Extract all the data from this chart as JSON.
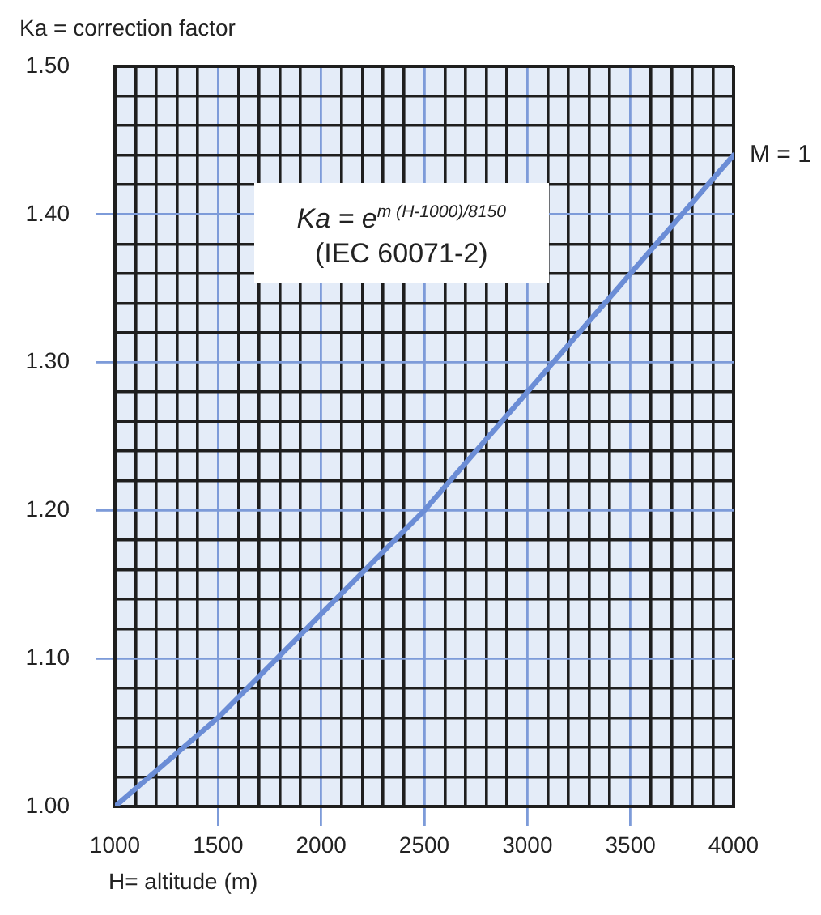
{
  "chart_data": {
    "type": "line",
    "xlabel": "H= altitude (m)",
    "ylabel": "Ka = correction factor",
    "annotations": [
      "Ka = e$^{m (H-1000)/8150}$",
      "(IEC 60071-2)"
    ],
    "x": [
      1000,
      1500,
      2000,
      2500,
      3000,
      3500,
      4000
    ],
    "series": [
      {
        "name": "M = 1",
        "color": "#6b8dd6",
        "values": [
          1.0,
          1.06,
          1.13,
          1.2,
          1.28,
          1.36,
          1.44
        ]
      }
    ],
    "xlim": [
      1000,
      4000
    ],
    "ylim": [
      1.0,
      1.5
    ],
    "xticks": [
      1000,
      {
        "value": 1100,
        "label": null
      },
      {
        "value": 1200,
        "label": null
      },
      {
        "value": 1300,
        "label": null
      },
      {
        "value": 1400,
        "label": null
      },
      1500,
      {
        "value": 1600,
        "label": null
      },
      {
        "value": 1700,
        "label": null
      },
      {
        "value": 1800,
        "label": null
      },
      {
        "value": 1900,
        "label": null
      },
      2000,
      {
        "value": 2100,
        "label": null
      },
      {
        "value": 2200,
        "label": null
      },
      {
        "value": 2300,
        "label": null
      },
      {
        "value": 2400,
        "label": null
      },
      2500,
      {
        "value": 2600,
        "label": null
      },
      {
        "value": 2700,
        "label": null
      },
      {
        "value": 2800,
        "label": null
      },
      {
        "value": 2900,
        "label": null
      },
      3000,
      {
        "value": 3100,
        "label": null
      },
      {
        "value": 3200,
        "label": null
      },
      {
        "value": 3300,
        "label": null
      },
      {
        "value": 3400,
        "label": null
      },
      3500,
      {
        "value": 3600,
        "label": null
      },
      {
        "value": 3700,
        "label": null
      },
      {
        "value": 3800,
        "label": null
      },
      {
        "value": 3900,
        "label": null
      },
      4000
    ],
    "yticks": [
      {
        "value": 1.0,
        "label": "1.00"
      },
      {
        "value": 1.02,
        "label": null
      },
      {
        "value": 1.04,
        "label": null
      },
      {
        "value": 1.06,
        "label": null
      },
      {
        "value": 1.08,
        "label": null
      },
      {
        "value": 1.1,
        "label": "1.10"
      },
      {
        "value": 1.12,
        "label": null
      },
      {
        "value": 1.14,
        "label": null
      },
      {
        "value": 1.16,
        "label": null
      },
      {
        "value": 1.18,
        "label": null
      },
      {
        "value": 1.2,
        "label": "1.20"
      },
      {
        "value": 1.22,
        "label": null
      },
      {
        "value": 1.24,
        "label": null
      },
      {
        "value": 1.26,
        "label": null
      },
      {
        "value": 1.28,
        "label": null
      },
      {
        "value": 1.3,
        "label": "1.30"
      },
      {
        "value": 1.32,
        "label": null
      },
      {
        "value": 1.34,
        "label": null
      },
      {
        "value": 1.36,
        "label": null
      },
      {
        "value": 1.38,
        "label": null
      },
      {
        "value": 1.4,
        "label": "1.40"
      },
      {
        "value": 1.42,
        "label": null
      },
      {
        "value": 1.44,
        "label": null
      },
      {
        "value": 1.46,
        "label": null
      },
      {
        "value": 1.48,
        "label": null
      },
      {
        "value": 1.5,
        "label": "1.50"
      }
    ],
    "grid": true
  }
}
